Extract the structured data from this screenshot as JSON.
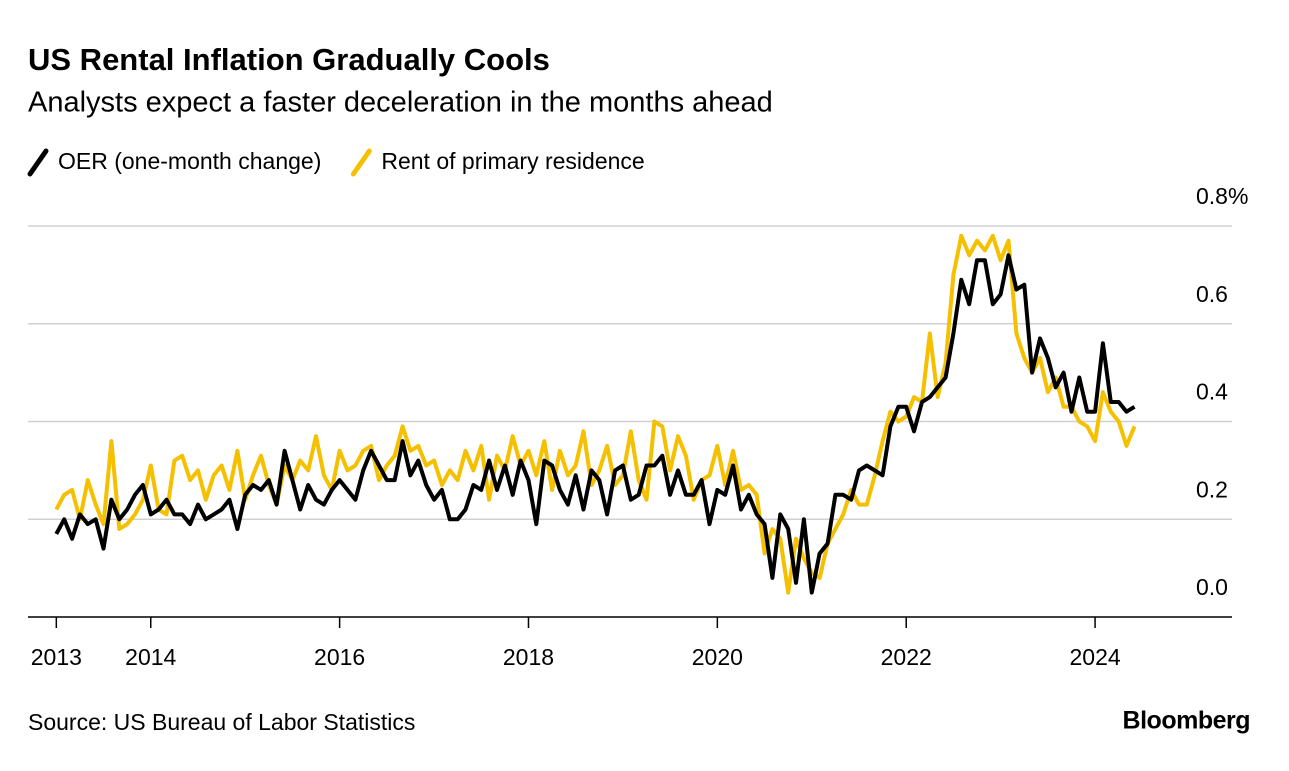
{
  "chart_data": {
    "type": "line",
    "title": "US Rental Inflation Gradually Cools",
    "subtitle": "Analysts expect a faster deceleration in the months ahead",
    "source": "Source: US Bureau of Labor Statistics",
    "logo": "Bloomberg",
    "x": [
      2013,
      2013.083,
      2013.167,
      2013.25,
      2013.333,
      2013.417,
      2013.5,
      2013.583,
      2013.667,
      2013.75,
      2013.833,
      2013.917,
      2014,
      2014.083,
      2014.167,
      2014.25,
      2014.333,
      2014.417,
      2014.5,
      2014.583,
      2014.667,
      2014.75,
      2014.833,
      2014.917,
      2015,
      2015.083,
      2015.167,
      2015.25,
      2015.333,
      2015.417,
      2015.5,
      2015.583,
      2015.667,
      2015.75,
      2015.833,
      2015.917,
      2016,
      2016.083,
      2016.167,
      2016.25,
      2016.333,
      2016.417,
      2016.5,
      2016.583,
      2016.667,
      2016.75,
      2016.833,
      2016.917,
      2017,
      2017.083,
      2017.167,
      2017.25,
      2017.333,
      2017.417,
      2017.5,
      2017.583,
      2017.667,
      2017.75,
      2017.833,
      2017.917,
      2018,
      2018.083,
      2018.167,
      2018.25,
      2018.333,
      2018.417,
      2018.5,
      2018.583,
      2018.667,
      2018.75,
      2018.833,
      2018.917,
      2019,
      2019.083,
      2019.167,
      2019.25,
      2019.333,
      2019.417,
      2019.5,
      2019.583,
      2019.667,
      2019.75,
      2019.833,
      2019.917,
      2020,
      2020.083,
      2020.167,
      2020.25,
      2020.333,
      2020.417,
      2020.5,
      2020.583,
      2020.667,
      2020.75,
      2020.833,
      2020.917,
      2021,
      2021.083,
      2021.167,
      2021.25,
      2021.333,
      2021.417,
      2021.5,
      2021.583,
      2021.667,
      2021.75,
      2021.833,
      2021.917,
      2022,
      2022.083,
      2022.167,
      2022.25,
      2022.333,
      2022.417,
      2022.5,
      2022.583,
      2022.667,
      2022.75,
      2022.833,
      2022.917,
      2023,
      2023.083,
      2023.167,
      2023.25,
      2023.333,
      2023.417,
      2023.5,
      2023.583,
      2023.667,
      2023.75,
      2023.833,
      2023.917,
      2024,
      2024.083,
      2024.167,
      2024.25,
      2024.333,
      2024.417
    ],
    "series": [
      {
        "name": "Rent of primary residence",
        "color": "#f5c000",
        "values": [
          0.22,
          0.25,
          0.26,
          0.2,
          0.28,
          0.23,
          0.19,
          0.36,
          0.18,
          0.19,
          0.21,
          0.24,
          0.31,
          0.22,
          0.21,
          0.32,
          0.33,
          0.28,
          0.3,
          0.24,
          0.29,
          0.31,
          0.26,
          0.34,
          0.24,
          0.29,
          0.33,
          0.27,
          0.23,
          0.31,
          0.28,
          0.32,
          0.3,
          0.37,
          0.29,
          0.26,
          0.34,
          0.3,
          0.31,
          0.34,
          0.35,
          0.28,
          0.31,
          0.33,
          0.39,
          0.34,
          0.35,
          0.31,
          0.32,
          0.27,
          0.3,
          0.28,
          0.34,
          0.3,
          0.35,
          0.24,
          0.33,
          0.3,
          0.37,
          0.31,
          0.34,
          0.29,
          0.36,
          0.26,
          0.34,
          0.29,
          0.31,
          0.38,
          0.27,
          0.3,
          0.35,
          0.27,
          0.29,
          0.38,
          0.28,
          0.24,
          0.4,
          0.39,
          0.3,
          0.37,
          0.33,
          0.24,
          0.28,
          0.29,
          0.35,
          0.27,
          0.34,
          0.26,
          0.27,
          0.25,
          0.13,
          0.18,
          0.16,
          0.05,
          0.16,
          0.12,
          0.09,
          0.08,
          0.15,
          0.18,
          0.21,
          0.26,
          0.23,
          0.23,
          0.29,
          0.36,
          0.42,
          0.4,
          0.41,
          0.45,
          0.44,
          0.58,
          0.45,
          0.52,
          0.7,
          0.78,
          0.74,
          0.77,
          0.75,
          0.78,
          0.73,
          0.77,
          0.58,
          0.53,
          0.5,
          0.53,
          0.46,
          0.49,
          0.43,
          0.43,
          0.4,
          0.39,
          0.36,
          0.46,
          0.42,
          0.4,
          0.35,
          0.39
        ]
      },
      {
        "name": "OER (one-month change)",
        "color": "#000000",
        "values": [
          0.17,
          0.2,
          0.16,
          0.21,
          0.19,
          0.2,
          0.14,
          0.24,
          0.2,
          0.22,
          0.25,
          0.27,
          0.21,
          0.22,
          0.24,
          0.21,
          0.21,
          0.19,
          0.23,
          0.2,
          0.21,
          0.22,
          0.24,
          0.18,
          0.25,
          0.27,
          0.26,
          0.28,
          0.23,
          0.34,
          0.28,
          0.22,
          0.27,
          0.24,
          0.23,
          0.26,
          0.28,
          0.26,
          0.24,
          0.3,
          0.34,
          0.31,
          0.28,
          0.28,
          0.36,
          0.29,
          0.32,
          0.27,
          0.24,
          0.26,
          0.2,
          0.2,
          0.22,
          0.27,
          0.26,
          0.32,
          0.26,
          0.31,
          0.25,
          0.32,
          0.28,
          0.19,
          0.32,
          0.31,
          0.26,
          0.23,
          0.29,
          0.22,
          0.3,
          0.28,
          0.21,
          0.3,
          0.31,
          0.24,
          0.25,
          0.31,
          0.31,
          0.33,
          0.25,
          0.3,
          0.25,
          0.25,
          0.28,
          0.19,
          0.26,
          0.25,
          0.31,
          0.22,
          0.25,
          0.21,
          0.19,
          0.08,
          0.21,
          0.18,
          0.07,
          0.2,
          0.05,
          0.13,
          0.15,
          0.25,
          0.25,
          0.24,
          0.3,
          0.31,
          0.3,
          0.29,
          0.39,
          0.43,
          0.43,
          0.38,
          0.44,
          0.45,
          0.47,
          0.49,
          0.58,
          0.69,
          0.64,
          0.73,
          0.73,
          0.64,
          0.66,
          0.74,
          0.67,
          0.68,
          0.5,
          0.57,
          0.53,
          0.47,
          0.5,
          0.42,
          0.49,
          0.42,
          0.42,
          0.56,
          0.44,
          0.44,
          0.42,
          0.43
        ]
      }
    ],
    "legend_order": [
      1,
      0
    ],
    "xlim": [
      2012.7,
      2025.45
    ],
    "xticks": [
      2013,
      2014,
      2016,
      2018,
      2020,
      2022,
      2024
    ],
    "ylim": [
      0,
      0.8
    ],
    "yticks": [
      {
        "value": 0,
        "label": "0.0"
      },
      0.2,
      0.4,
      0.6,
      {
        "value": 0.8,
        "label": "0.8%"
      }
    ],
    "grid": true
  }
}
